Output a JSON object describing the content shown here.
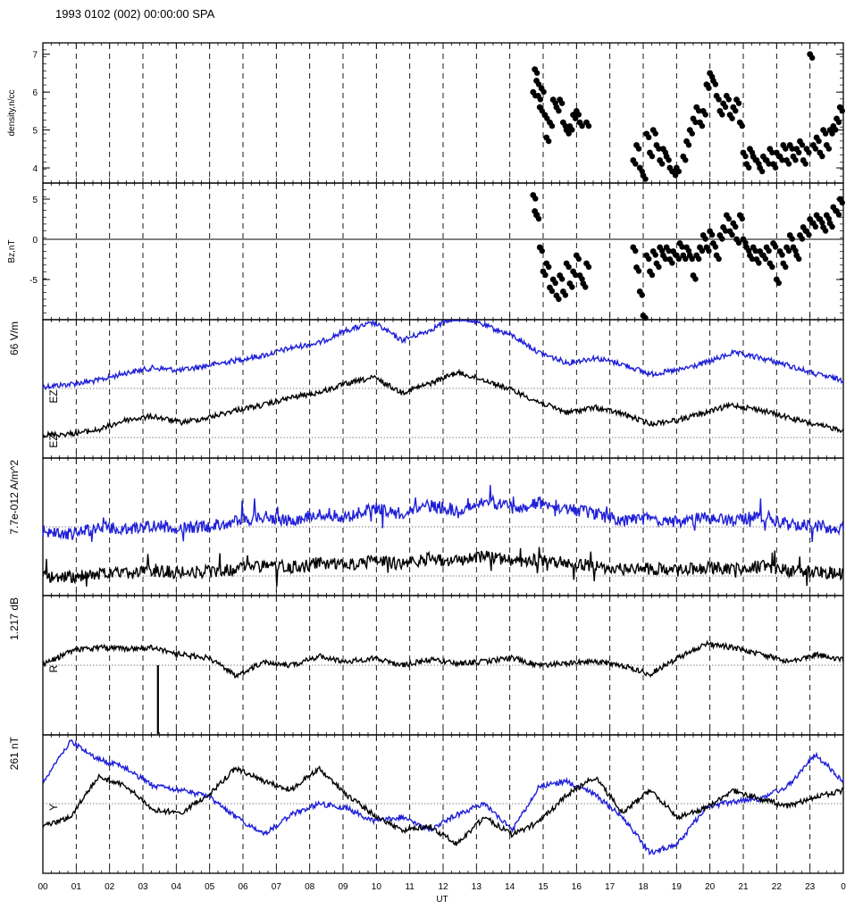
{
  "title": "1993 0102 (002) 00:00:00 SPA",
  "colors": {
    "blue": "#1f1fd8",
    "black": "#000000"
  },
  "chart_data": {
    "type": "line",
    "x_axis": {
      "label": "UT",
      "range": [
        0,
        24
      ],
      "ticks": [
        "00",
        "01",
        "02",
        "03",
        "04",
        "05",
        "06",
        "07",
        "08",
        "09",
        "10",
        "11",
        "12",
        "13",
        "14",
        "15",
        "16",
        "17",
        "18",
        "19",
        "20",
        "21",
        "22",
        "23",
        "0"
      ],
      "grid": "dashed vertical lines every hour"
    },
    "panels": [
      {
        "id": "density",
        "type": "scatter",
        "ylabel": "density,n/cc",
        "ylim": [
          3.6,
          7.3
        ],
        "yticks": [
          4,
          5,
          6,
          7
        ],
        "zero_line": false,
        "traces": [
          {
            "color": "#000000",
            "x_start": 14.7,
            "points": [
              [
                14.7,
                6.0
              ],
              [
                14.75,
                6.6
              ],
              [
                14.8,
                6.3
              ],
              [
                14.85,
                5.9
              ],
              [
                14.9,
                5.6
              ],
              [
                14.95,
                6.1
              ],
              [
                15.05,
                5.4
              ],
              [
                15.1,
                4.8
              ],
              [
                15.2,
                5.2
              ],
              [
                15.3,
                5.8
              ],
              [
                15.4,
                5.6
              ],
              [
                15.5,
                5.8
              ],
              [
                15.6,
                5.2
              ],
              [
                15.7,
                5.0
              ],
              [
                15.8,
                5.1
              ],
              [
                15.9,
                5.4
              ],
              [
                16.0,
                5.5
              ],
              [
                16.1,
                5.2
              ],
              [
                16.3,
                5.2
              ],
              [
                17.7,
                4.2
              ],
              [
                17.8,
                4.6
              ],
              [
                17.9,
                4.0
              ],
              [
                18.0,
                3.8
              ],
              [
                18.1,
                4.9
              ],
              [
                18.2,
                4.4
              ],
              [
                18.3,
                5.0
              ],
              [
                18.4,
                4.6
              ],
              [
                18.5,
                4.2
              ],
              [
                18.6,
                4.5
              ],
              [
                18.7,
                4.3
              ],
              [
                18.8,
                4.0
              ],
              [
                18.9,
                3.9
              ],
              [
                19.0,
                4.0
              ],
              [
                19.2,
                4.3
              ],
              [
                19.3,
                4.7
              ],
              [
                19.4,
                5.0
              ],
              [
                19.5,
                5.3
              ],
              [
                19.6,
                5.6
              ],
              [
                19.7,
                5.2
              ],
              [
                19.8,
                5.5
              ],
              [
                19.9,
                6.2
              ],
              [
                20.0,
                6.5
              ],
              [
                20.1,
                6.3
              ],
              [
                20.2,
                5.9
              ],
              [
                20.3,
                5.5
              ],
              [
                20.4,
                5.7
              ],
              [
                20.5,
                5.9
              ],
              [
                20.6,
                5.4
              ],
              [
                20.7,
                5.6
              ],
              [
                20.8,
                5.8
              ],
              [
                20.9,
                5.2
              ],
              [
                21.0,
                4.4
              ],
              [
                21.1,
                4.1
              ],
              [
                21.2,
                4.5
              ],
              [
                21.3,
                4.3
              ],
              [
                21.4,
                4.2
              ],
              [
                21.5,
                4.0
              ],
              [
                21.6,
                4.3
              ],
              [
                21.7,
                4.2
              ],
              [
                21.8,
                4.5
              ],
              [
                21.9,
                4.1
              ],
              [
                22.0,
                4.4
              ],
              [
                22.1,
                4.3
              ],
              [
                22.2,
                4.6
              ],
              [
                22.3,
                4.2
              ],
              [
                22.4,
                4.6
              ],
              [
                22.5,
                4.3
              ],
              [
                22.6,
                4.5
              ],
              [
                22.7,
                4.7
              ],
              [
                22.8,
                4.2
              ],
              [
                22.9,
                4.5
              ],
              [
                23.0,
                7.0
              ],
              [
                23.1,
                4.6
              ],
              [
                23.2,
                4.8
              ],
              [
                23.3,
                4.4
              ],
              [
                23.4,
                5.0
              ],
              [
                23.5,
                4.6
              ],
              [
                23.6,
                5.0
              ],
              [
                23.7,
                5.1
              ],
              [
                23.8,
                5.3
              ],
              [
                23.9,
                5.6
              ]
            ]
          }
        ]
      },
      {
        "id": "bz",
        "type": "scatter",
        "ylabel": "Bz,nT",
        "ylim": [
          -10,
          7
        ],
        "yticks": [
          -5,
          0,
          5
        ],
        "zero_line": true,
        "traces": [
          {
            "color": "#000000",
            "points": [
              [
                14.7,
                5.5
              ],
              [
                14.75,
                3.5
              ],
              [
                14.8,
                3.0
              ],
              [
                14.9,
                -1.0
              ],
              [
                15.0,
                -4.0
              ],
              [
                15.1,
                -3.0
              ],
              [
                15.2,
                -6.0
              ],
              [
                15.3,
                -5.0
              ],
              [
                15.4,
                -7.0
              ],
              [
                15.5,
                -4.5
              ],
              [
                15.6,
                -6.5
              ],
              [
                15.7,
                -3.0
              ],
              [
                15.8,
                -5.5
              ],
              [
                15.9,
                -4.0
              ],
              [
                16.0,
                -2.0
              ],
              [
                16.1,
                -4.5
              ],
              [
                16.2,
                -5.5
              ],
              [
                16.3,
                -3.0
              ],
              [
                17.7,
                -1.0
              ],
              [
                17.8,
                -3.5
              ],
              [
                17.9,
                -6.5
              ],
              [
                18.0,
                -9.5
              ],
              [
                18.1,
                -2.0
              ],
              [
                18.2,
                -4.0
              ],
              [
                18.3,
                -1.5
              ],
              [
                18.4,
                -3.0
              ],
              [
                18.5,
                -1.0
              ],
              [
                18.6,
                -2.0
              ],
              [
                18.7,
                -1.0
              ],
              [
                18.8,
                -2.5
              ],
              [
                18.9,
                -1.5
              ],
              [
                19.0,
                -2.0
              ],
              [
                19.1,
                -0.5
              ],
              [
                19.2,
                -2.0
              ],
              [
                19.3,
                -1.0
              ],
              [
                19.4,
                -2.0
              ],
              [
                19.5,
                -4.5
              ],
              [
                19.6,
                -2.0
              ],
              [
                19.7,
                -1.0
              ],
              [
                19.8,
                0.5
              ],
              [
                19.9,
                -1.0
              ],
              [
                20.0,
                1.0
              ],
              [
                20.1,
                -0.5
              ],
              [
                20.2,
                -2.0
              ],
              [
                20.3,
                0.5
              ],
              [
                20.4,
                1.5
              ],
              [
                20.5,
                3.0
              ],
              [
                20.6,
                1.0
              ],
              [
                20.7,
                2.0
              ],
              [
                20.8,
                0.0
              ],
              [
                20.9,
                3.0
              ],
              [
                21.0,
                0.0
              ],
              [
                21.1,
                -1.0
              ],
              [
                21.2,
                -2.0
              ],
              [
                21.3,
                -1.0
              ],
              [
                21.4,
                -2.5
              ],
              [
                21.5,
                -1.5
              ],
              [
                21.6,
                -2.0
              ],
              [
                21.7,
                -1.0
              ],
              [
                21.8,
                -3.0
              ],
              [
                21.9,
                -0.5
              ],
              [
                22.0,
                -5.0
              ],
              [
                22.1,
                -1.5
              ],
              [
                22.2,
                -3.0
              ],
              [
                22.3,
                -1.0
              ],
              [
                22.4,
                0.5
              ],
              [
                22.5,
                -1.0
              ],
              [
                22.6,
                -2.0
              ],
              [
                22.7,
                0.5
              ],
              [
                22.8,
                1.5
              ],
              [
                22.9,
                1.0
              ],
              [
                23.0,
                2.5
              ],
              [
                23.1,
                2.0
              ],
              [
                23.2,
                3.0
              ],
              [
                23.3,
                2.5
              ],
              [
                23.4,
                1.5
              ],
              [
                23.5,
                3.0
              ],
              [
                23.6,
                2.0
              ],
              [
                23.7,
                4.0
              ],
              [
                23.8,
                3.5
              ],
              [
                23.9,
                5.0
              ]
            ]
          }
        ]
      },
      {
        "id": "ez",
        "type": "line",
        "ylabel": "66 V/m",
        "range_value": 66,
        "traces": [
          {
            "label": "EZ",
            "color": "#1f1fd8",
            "y": [
              0.5,
              0.7,
              1.0,
              1.6,
              2.0,
              1.8,
              2.2,
              2.6,
              3.0,
              3.6,
              4.0,
              5.0,
              5.6,
              4.2,
              5.0,
              6.2,
              5.4,
              4.6,
              3.2,
              2.4,
              2.8,
              2.3,
              1.5,
              1.8,
              2.4,
              3.2,
              2.8,
              2.2,
              1.5,
              1.0
            ]
          },
          {
            "label": "EZ",
            "color": "#000000",
            "y": [
              0.2,
              0.3,
              0.6,
              1.4,
              1.7,
              1.2,
              1.6,
              2.2,
              2.6,
              3.2,
              3.6,
              4.3,
              4.8,
              3.6,
              4.3,
              5.2,
              4.6,
              3.8,
              2.8,
              2.0,
              2.4,
              1.9,
              1.1,
              1.4,
              2.0,
              2.6,
              2.2,
              1.6,
              1.0,
              0.6
            ]
          }
        ]
      },
      {
        "id": "current",
        "type": "line",
        "ylabel": "7.7e-012 A/m^2",
        "range_value": 7.7e-12,
        "traces": [
          {
            "label": "",
            "color": "#1f1fd8",
            "y": [
              0.0,
              -0.3,
              0.4,
              0.1,
              0.6,
              0.3,
              0.5,
              0.9,
              1.4,
              1.0,
              1.8,
              1.3,
              2.2,
              1.6,
              2.4,
              2.0,
              2.9,
              2.2,
              2.6,
              2.1,
              1.6,
              1.0,
              1.2,
              0.8,
              1.3,
              1.0,
              1.5,
              0.7,
              0.5,
              0.2
            ]
          },
          {
            "label": "",
            "color": "#000000",
            "y": [
              0.0,
              -0.1,
              0.2,
              0.2,
              0.5,
              0.3,
              0.4,
              0.6,
              1.0,
              0.8,
              1.2,
              1.0,
              1.4,
              1.1,
              1.6,
              1.4,
              1.8,
              1.4,
              1.5,
              1.2,
              0.9,
              0.6,
              0.7,
              0.5,
              0.8,
              0.6,
              0.9,
              0.5,
              0.4,
              0.2
            ]
          }
        ]
      },
      {
        "id": "ratio",
        "type": "line",
        "ylabel": "1.217 dB",
        "range_value": 1.217,
        "traces": [
          {
            "label": "R",
            "color": "#000000",
            "y": [
              0.0,
              0.8,
              1.0,
              0.9,
              1.0,
              0.6,
              0.4,
              -0.6,
              0.2,
              0.0,
              0.5,
              0.2,
              0.4,
              0.0,
              0.3,
              0.1,
              0.2,
              0.4,
              0.0,
              0.1,
              0.2,
              0.0,
              -0.5,
              0.4,
              1.2,
              1.0,
              0.6,
              0.2,
              0.6,
              0.3
            ]
          }
        ]
      },
      {
        "id": "by",
        "type": "line",
        "ylabel": "261 nT",
        "range_value": 261,
        "traces": [
          {
            "label": "",
            "color": "#1f1fd8",
            "y": [
              1.0,
              2.8,
              2.0,
              1.6,
              0.8,
              0.6,
              0.3,
              -0.6,
              -1.4,
              -0.5,
              0.0,
              -0.2,
              -0.8,
              -0.6,
              -1.2,
              -0.5,
              0.0,
              -1.2,
              0.8,
              1.0,
              0.4,
              -0.6,
              -2.2,
              -1.8,
              -0.2,
              0.1,
              0.2,
              0.8,
              2.2,
              1.0
            ]
          },
          {
            "label": "Y",
            "color": "#000000",
            "y": [
              -1.0,
              -0.6,
              1.2,
              0.8,
              -0.3,
              -0.4,
              0.4,
              1.6,
              1.0,
              0.6,
              1.6,
              0.4,
              -0.5,
              -1.2,
              -1.0,
              -1.8,
              -0.6,
              -1.4,
              -0.8,
              0.4,
              1.2,
              -0.4,
              0.6,
              -0.6,
              -0.2,
              0.6,
              0.2,
              -0.1,
              0.3,
              0.6
            ]
          }
        ]
      }
    ]
  }
}
